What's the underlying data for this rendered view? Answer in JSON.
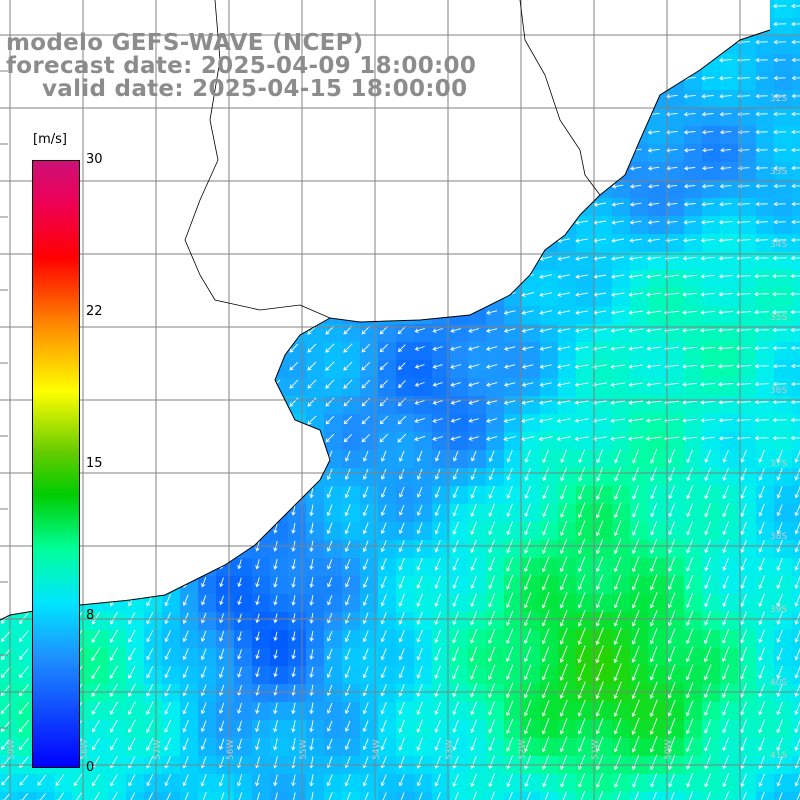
{
  "map": {
    "title_model": "modelo GEFS-WAVE (NCEP)",
    "title_forecast": "forecast date: 2025-04-09 18:00:00",
    "title_valid": "valid date: 2025-04-15 18:00:00",
    "variable": "wind speed and direction",
    "lat_labels": [
      "32S",
      "33S",
      "34S",
      "35S",
      "36S",
      "37S",
      "38S",
      "39S",
      "40S",
      "41S"
    ],
    "lon_labels": [
      "59W",
      "58W",
      "57W",
      "56W",
      "55W",
      "54W",
      "53W",
      "52W",
      "51W",
      "50W"
    ],
    "colors": {
      "land": "#ffffff",
      "coast": "#000000",
      "grid": "#808080",
      "title": "#8c8c8c",
      "arrows": "#ffffff"
    }
  },
  "legend": {
    "unit": "[m/s]",
    "ticks": [
      "30",
      "22",
      "15",
      "8",
      "0"
    ],
    "min": 0,
    "max": 30,
    "colormap": [
      "#0000ff",
      "#1e90ff",
      "#00e5ff",
      "#00ff99",
      "#00cc00",
      "#ffff00",
      "#ff8800",
      "#ff0000",
      "#cc1177"
    ]
  }
}
